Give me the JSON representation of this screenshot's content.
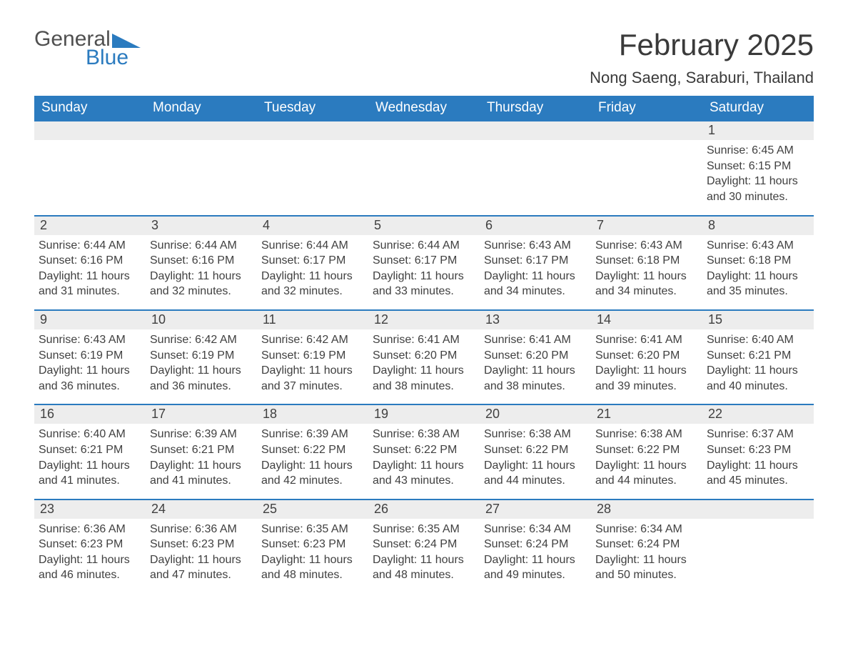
{
  "logo": {
    "word1": "General",
    "word2": "Blue"
  },
  "title": "February 2025",
  "location": "Nong Saeng, Saraburi, Thailand",
  "colors": {
    "brand_blue": "#2b7bbf",
    "header_text": "#ffffff",
    "daynum_bg": "#ededed",
    "body_text": "#404040",
    "page_bg": "#ffffff"
  },
  "typography": {
    "title_fontsize": 42,
    "location_fontsize": 22,
    "weekday_fontsize": 19,
    "daynum_fontsize": 18,
    "content_fontsize": 16,
    "font_family": "Segoe UI"
  },
  "calendar": {
    "weekdays": [
      "Sunday",
      "Monday",
      "Tuesday",
      "Wednesday",
      "Thursday",
      "Friday",
      "Saturday"
    ],
    "weeks": [
      [
        null,
        null,
        null,
        null,
        null,
        null,
        {
          "n": "1",
          "sr": "Sunrise: 6:45 AM",
          "ss": "Sunset: 6:15 PM",
          "dl": "Daylight: 11 hours and 30 minutes."
        }
      ],
      [
        {
          "n": "2",
          "sr": "Sunrise: 6:44 AM",
          "ss": "Sunset: 6:16 PM",
          "dl": "Daylight: 11 hours and 31 minutes."
        },
        {
          "n": "3",
          "sr": "Sunrise: 6:44 AM",
          "ss": "Sunset: 6:16 PM",
          "dl": "Daylight: 11 hours and 32 minutes."
        },
        {
          "n": "4",
          "sr": "Sunrise: 6:44 AM",
          "ss": "Sunset: 6:17 PM",
          "dl": "Daylight: 11 hours and 32 minutes."
        },
        {
          "n": "5",
          "sr": "Sunrise: 6:44 AM",
          "ss": "Sunset: 6:17 PM",
          "dl": "Daylight: 11 hours and 33 minutes."
        },
        {
          "n": "6",
          "sr": "Sunrise: 6:43 AM",
          "ss": "Sunset: 6:17 PM",
          "dl": "Daylight: 11 hours and 34 minutes."
        },
        {
          "n": "7",
          "sr": "Sunrise: 6:43 AM",
          "ss": "Sunset: 6:18 PM",
          "dl": "Daylight: 11 hours and 34 minutes."
        },
        {
          "n": "8",
          "sr": "Sunrise: 6:43 AM",
          "ss": "Sunset: 6:18 PM",
          "dl": "Daylight: 11 hours and 35 minutes."
        }
      ],
      [
        {
          "n": "9",
          "sr": "Sunrise: 6:43 AM",
          "ss": "Sunset: 6:19 PM",
          "dl": "Daylight: 11 hours and 36 minutes."
        },
        {
          "n": "10",
          "sr": "Sunrise: 6:42 AM",
          "ss": "Sunset: 6:19 PM",
          "dl": "Daylight: 11 hours and 36 minutes."
        },
        {
          "n": "11",
          "sr": "Sunrise: 6:42 AM",
          "ss": "Sunset: 6:19 PM",
          "dl": "Daylight: 11 hours and 37 minutes."
        },
        {
          "n": "12",
          "sr": "Sunrise: 6:41 AM",
          "ss": "Sunset: 6:20 PM",
          "dl": "Daylight: 11 hours and 38 minutes."
        },
        {
          "n": "13",
          "sr": "Sunrise: 6:41 AM",
          "ss": "Sunset: 6:20 PM",
          "dl": "Daylight: 11 hours and 38 minutes."
        },
        {
          "n": "14",
          "sr": "Sunrise: 6:41 AM",
          "ss": "Sunset: 6:20 PM",
          "dl": "Daylight: 11 hours and 39 minutes."
        },
        {
          "n": "15",
          "sr": "Sunrise: 6:40 AM",
          "ss": "Sunset: 6:21 PM",
          "dl": "Daylight: 11 hours and 40 minutes."
        }
      ],
      [
        {
          "n": "16",
          "sr": "Sunrise: 6:40 AM",
          "ss": "Sunset: 6:21 PM",
          "dl": "Daylight: 11 hours and 41 minutes."
        },
        {
          "n": "17",
          "sr": "Sunrise: 6:39 AM",
          "ss": "Sunset: 6:21 PM",
          "dl": "Daylight: 11 hours and 41 minutes."
        },
        {
          "n": "18",
          "sr": "Sunrise: 6:39 AM",
          "ss": "Sunset: 6:22 PM",
          "dl": "Daylight: 11 hours and 42 minutes."
        },
        {
          "n": "19",
          "sr": "Sunrise: 6:38 AM",
          "ss": "Sunset: 6:22 PM",
          "dl": "Daylight: 11 hours and 43 minutes."
        },
        {
          "n": "20",
          "sr": "Sunrise: 6:38 AM",
          "ss": "Sunset: 6:22 PM",
          "dl": "Daylight: 11 hours and 44 minutes."
        },
        {
          "n": "21",
          "sr": "Sunrise: 6:38 AM",
          "ss": "Sunset: 6:22 PM",
          "dl": "Daylight: 11 hours and 44 minutes."
        },
        {
          "n": "22",
          "sr": "Sunrise: 6:37 AM",
          "ss": "Sunset: 6:23 PM",
          "dl": "Daylight: 11 hours and 45 minutes."
        }
      ],
      [
        {
          "n": "23",
          "sr": "Sunrise: 6:36 AM",
          "ss": "Sunset: 6:23 PM",
          "dl": "Daylight: 11 hours and 46 minutes."
        },
        {
          "n": "24",
          "sr": "Sunrise: 6:36 AM",
          "ss": "Sunset: 6:23 PM",
          "dl": "Daylight: 11 hours and 47 minutes."
        },
        {
          "n": "25",
          "sr": "Sunrise: 6:35 AM",
          "ss": "Sunset: 6:23 PM",
          "dl": "Daylight: 11 hours and 48 minutes."
        },
        {
          "n": "26",
          "sr": "Sunrise: 6:35 AM",
          "ss": "Sunset: 6:24 PM",
          "dl": "Daylight: 11 hours and 48 minutes."
        },
        {
          "n": "27",
          "sr": "Sunrise: 6:34 AM",
          "ss": "Sunset: 6:24 PM",
          "dl": "Daylight: 11 hours and 49 minutes."
        },
        {
          "n": "28",
          "sr": "Sunrise: 6:34 AM",
          "ss": "Sunset: 6:24 PM",
          "dl": "Daylight: 11 hours and 50 minutes."
        },
        null
      ]
    ]
  }
}
